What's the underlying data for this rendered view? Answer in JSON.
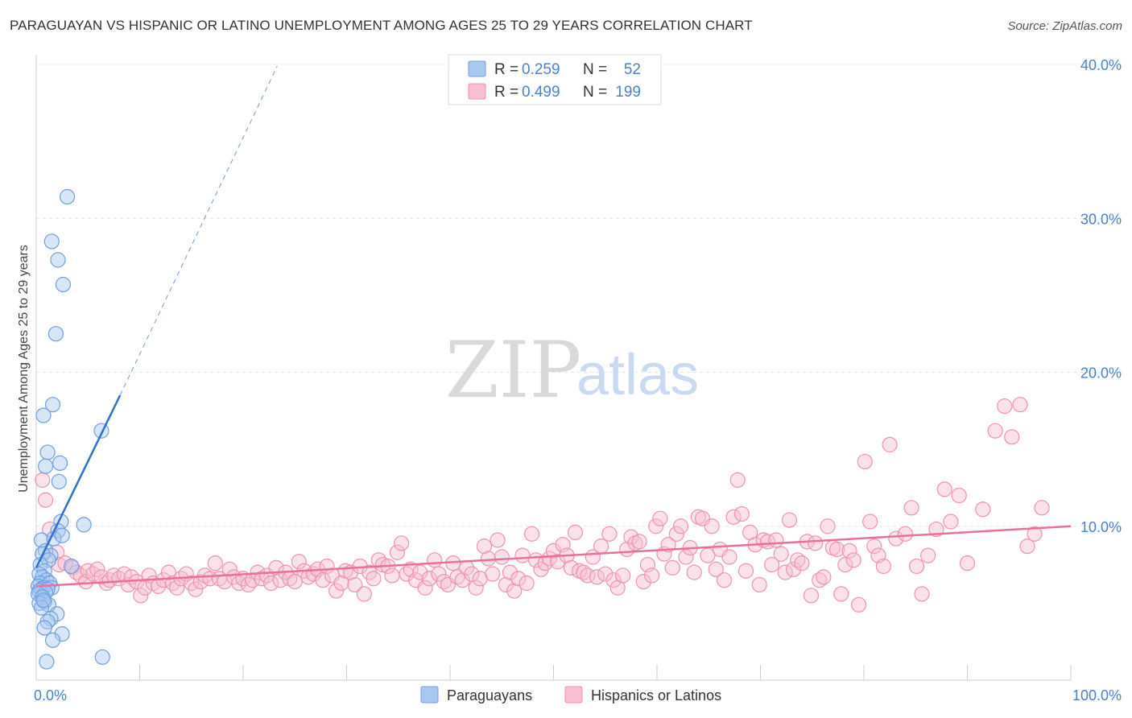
{
  "header": {
    "title": "PARAGUAYAN VS HISPANIC OR LATINO UNEMPLOYMENT AMONG AGES 25 TO 29 YEARS CORRELATION CHART",
    "source": "Source: ZipAtlas.com"
  },
  "watermark": {
    "zip": "ZIP",
    "atlas": "atlas"
  },
  "legend": {
    "r_label": "R =",
    "n_label": "N =",
    "entries": [
      {
        "r": "0.259",
        "n": "52",
        "color": "#a9c8f0",
        "stroke": "#6f9fe0"
      },
      {
        "r": "0.499",
        "n": "199",
        "color": "#f7bfd0",
        "stroke": "#ee92b0"
      }
    ]
  },
  "bottom_legend": [
    {
      "label": "Paraguayans",
      "color": "#a9c8f0",
      "stroke": "#6f9fe0"
    },
    {
      "label": "Hispanics or Latinos",
      "color": "#f7bfd0",
      "stroke": "#ee92b0"
    }
  ],
  "chart_data": {
    "type": "scatter",
    "title": "PARAGUAYAN VS HISPANIC OR LATINO UNEMPLOYMENT AMONG AGES 25 TO 29 YEARS CORRELATION CHART",
    "xlabel": "",
    "ylabel": "Unemployment Among Ages 25 to 29 years",
    "xlim": [
      0,
      100
    ],
    "ylim": [
      0,
      40
    ],
    "x_tick_labels": [
      "0.0%",
      "100.0%"
    ],
    "y_ticks": [
      10,
      20,
      30,
      40
    ],
    "y_tick_labels": [
      "10.0%",
      "20.0%",
      "30.0%",
      "40.0%"
    ],
    "grid": true,
    "legend_position": "top-center",
    "series": [
      {
        "name": "Paraguayans",
        "color": "#a9c8f0",
        "stroke": "#6f9fe0",
        "line_color": "#2f6fd0",
        "r": 0.259,
        "n": 52,
        "trend": {
          "x0": 0,
          "y0": 7.3,
          "x1": 8.1,
          "y1": 18.5,
          "dash_x1": 23.3,
          "dash_y1": 39.9
        },
        "points": [
          [
            3.0,
            31.4
          ],
          [
            1.5,
            28.5
          ],
          [
            2.1,
            27.3
          ],
          [
            2.6,
            25.7
          ],
          [
            1.9,
            22.5
          ],
          [
            1.6,
            17.9
          ],
          [
            0.7,
            17.2
          ],
          [
            6.3,
            16.2
          ],
          [
            1.1,
            14.8
          ],
          [
            0.9,
            13.9
          ],
          [
            2.3,
            14.1
          ],
          [
            2.2,
            12.9
          ],
          [
            2.4,
            10.3
          ],
          [
            4.6,
            10.1
          ],
          [
            2.1,
            9.7
          ],
          [
            0.5,
            9.1
          ],
          [
            1.7,
            9.2
          ],
          [
            2.5,
            9.4
          ],
          [
            0.9,
            8.4
          ],
          [
            1.4,
            8.1
          ],
          [
            0.6,
            8.2
          ],
          [
            1.2,
            7.8
          ],
          [
            0.4,
            7.5
          ],
          [
            3.4,
            7.4
          ],
          [
            0.8,
            7.1
          ],
          [
            0.3,
            6.9
          ],
          [
            0.6,
            6.7
          ],
          [
            1.0,
            6.5
          ],
          [
            0.4,
            6.3
          ],
          [
            1.3,
            6.3
          ],
          [
            0.2,
            6.1
          ],
          [
            0.7,
            6.0
          ],
          [
            1.5,
            6.0
          ],
          [
            0.5,
            5.9
          ],
          [
            1.1,
            5.9
          ],
          [
            0.3,
            5.8
          ],
          [
            0.9,
            5.7
          ],
          [
            0.2,
            5.6
          ],
          [
            0.6,
            5.4
          ],
          [
            0.8,
            5.1
          ],
          [
            0.3,
            5.0
          ],
          [
            1.2,
            4.9
          ],
          [
            0.5,
            4.7
          ],
          [
            2.0,
            4.3
          ],
          [
            1.4,
            4.0
          ],
          [
            1.1,
            3.8
          ],
          [
            0.8,
            3.4
          ],
          [
            2.5,
            3.0
          ],
          [
            1.6,
            2.6
          ],
          [
            6.4,
            1.5
          ],
          [
            1.0,
            1.2
          ],
          [
            0.7,
            5.2
          ]
        ]
      },
      {
        "name": "Hispanics or Latinos",
        "color": "#f7bfd0",
        "stroke": "#ee92b0",
        "line_color": "#e8709a",
        "r": 0.499,
        "n": 199,
        "trend": {
          "x0": 0,
          "y0": 6.1,
          "x1": 100,
          "y1": 10.0
        },
        "points": [
          [
            0.6,
            13.0
          ],
          [
            0.9,
            11.7
          ],
          [
            1.3,
            9.8
          ],
          [
            2.0,
            8.3
          ],
          [
            2.2,
            7.5
          ],
          [
            2.8,
            7.6
          ],
          [
            3.5,
            7.3
          ],
          [
            3.9,
            7.0
          ],
          [
            4.3,
            6.8
          ],
          [
            4.8,
            6.4
          ],
          [
            5.0,
            7.1
          ],
          [
            5.5,
            6.9
          ],
          [
            5.9,
            7.2
          ],
          [
            6.3,
            6.7
          ],
          [
            6.8,
            6.3
          ],
          [
            7.1,
            6.5
          ],
          [
            7.5,
            6.8
          ],
          [
            8.0,
            6.6
          ],
          [
            8.5,
            6.9
          ],
          [
            8.9,
            6.2
          ],
          [
            9.2,
            6.7
          ],
          [
            9.7,
            6.4
          ],
          [
            10.1,
            5.5
          ],
          [
            10.5,
            6.0
          ],
          [
            10.9,
            6.8
          ],
          [
            11.3,
            6.3
          ],
          [
            11.8,
            6.1
          ],
          [
            12.3,
            6.5
          ],
          [
            12.8,
            7.0
          ],
          [
            13.2,
            6.3
          ],
          [
            13.6,
            6.0
          ],
          [
            14.0,
            6.6
          ],
          [
            14.5,
            6.9
          ],
          [
            15.0,
            6.3
          ],
          [
            15.4,
            5.9
          ],
          [
            15.9,
            6.4
          ],
          [
            16.3,
            6.8
          ],
          [
            16.8,
            6.6
          ],
          [
            17.3,
            7.6
          ],
          [
            17.7,
            6.6
          ],
          [
            18.2,
            6.4
          ],
          [
            18.7,
            7.2
          ],
          [
            19.1,
            6.7
          ],
          [
            19.6,
            6.3
          ],
          [
            20.0,
            6.6
          ],
          [
            20.5,
            6.2
          ],
          [
            20.9,
            6.5
          ],
          [
            21.4,
            7.0
          ],
          [
            21.8,
            6.6
          ],
          [
            22.3,
            6.8
          ],
          [
            22.7,
            6.3
          ],
          [
            23.2,
            7.3
          ],
          [
            23.6,
            6.5
          ],
          [
            24.1,
            7.0
          ],
          [
            24.5,
            6.6
          ],
          [
            25.0,
            6.4
          ],
          [
            25.4,
            7.7
          ],
          [
            25.9,
            7.1
          ],
          [
            26.3,
            6.7
          ],
          [
            26.8,
            6.9
          ],
          [
            27.2,
            7.2
          ],
          [
            27.7,
            6.5
          ],
          [
            28.1,
            7.4
          ],
          [
            28.6,
            6.8
          ],
          [
            29.0,
            5.8
          ],
          [
            29.5,
            6.3
          ],
          [
            29.9,
            7.1
          ],
          [
            30.4,
            7.0
          ],
          [
            30.8,
            6.2
          ],
          [
            31.3,
            7.4
          ],
          [
            31.7,
            5.6
          ],
          [
            32.2,
            7.0
          ],
          [
            32.6,
            6.6
          ],
          [
            33.1,
            7.8
          ],
          [
            33.5,
            7.5
          ],
          [
            34.0,
            7.4
          ],
          [
            34.4,
            6.8
          ],
          [
            34.9,
            8.3
          ],
          [
            35.3,
            8.9
          ],
          [
            35.8,
            6.9
          ],
          [
            36.2,
            7.2
          ],
          [
            36.7,
            6.5
          ],
          [
            37.1,
            7.0
          ],
          [
            37.6,
            6.0
          ],
          [
            38.0,
            6.6
          ],
          [
            38.5,
            7.8
          ],
          [
            38.9,
            6.9
          ],
          [
            39.4,
            6.4
          ],
          [
            39.8,
            6.2
          ],
          [
            40.3,
            7.6
          ],
          [
            40.7,
            6.7
          ],
          [
            41.2,
            6.5
          ],
          [
            41.6,
            7.3
          ],
          [
            42.1,
            6.9
          ],
          [
            42.5,
            6.0
          ],
          [
            42.9,
            6.6
          ],
          [
            43.3,
            8.7
          ],
          [
            43.7,
            7.9
          ],
          [
            44.1,
            6.9
          ],
          [
            44.6,
            9.1
          ],
          [
            45.0,
            8.0
          ],
          [
            45.4,
            6.2
          ],
          [
            45.8,
            7.0
          ],
          [
            46.2,
            5.8
          ],
          [
            46.6,
            6.6
          ],
          [
            47.0,
            8.1
          ],
          [
            47.4,
            6.3
          ],
          [
            47.9,
            9.5
          ],
          [
            48.3,
            7.8
          ],
          [
            48.8,
            7.2
          ],
          [
            49.2,
            7.6
          ],
          [
            49.6,
            7.9
          ],
          [
            50.0,
            8.4
          ],
          [
            50.4,
            7.7
          ],
          [
            50.9,
            8.8
          ],
          [
            51.3,
            8.1
          ],
          [
            51.7,
            7.3
          ],
          [
            52.1,
            9.6
          ],
          [
            52.5,
            7.1
          ],
          [
            52.9,
            7.0
          ],
          [
            53.3,
            6.8
          ],
          [
            53.8,
            8.0
          ],
          [
            54.2,
            6.7
          ],
          [
            54.6,
            8.7
          ],
          [
            55.0,
            6.9
          ],
          [
            55.4,
            9.5
          ],
          [
            55.8,
            6.5
          ],
          [
            56.2,
            6.0
          ],
          [
            56.7,
            6.8
          ],
          [
            57.1,
            8.5
          ],
          [
            57.5,
            9.3
          ],
          [
            57.9,
            8.9
          ],
          [
            58.3,
            9.0
          ],
          [
            58.7,
            6.4
          ],
          [
            59.1,
            7.5
          ],
          [
            59.5,
            6.8
          ],
          [
            59.9,
            10.0
          ],
          [
            60.3,
            10.5
          ],
          [
            60.7,
            8.2
          ],
          [
            61.1,
            8.8
          ],
          [
            61.5,
            7.3
          ],
          [
            61.9,
            9.5
          ],
          [
            62.3,
            10.0
          ],
          [
            62.8,
            8.0
          ],
          [
            63.2,
            8.6
          ],
          [
            63.6,
            7.0
          ],
          [
            64.0,
            10.6
          ],
          [
            64.4,
            10.5
          ],
          [
            64.9,
            8.1
          ],
          [
            65.3,
            10.0
          ],
          [
            65.7,
            7.2
          ],
          [
            66.1,
            8.5
          ],
          [
            66.5,
            6.5
          ],
          [
            67.0,
            8.0
          ],
          [
            67.4,
            10.6
          ],
          [
            67.8,
            13.0
          ],
          [
            68.2,
            10.8
          ],
          [
            68.6,
            7.1
          ],
          [
            69.0,
            9.6
          ],
          [
            69.5,
            8.8
          ],
          [
            69.9,
            6.2
          ],
          [
            70.3,
            9.1
          ],
          [
            70.7,
            9.0
          ],
          [
            71.1,
            7.5
          ],
          [
            71.5,
            9.1
          ],
          [
            72.0,
            8.2
          ],
          [
            72.4,
            7.0
          ],
          [
            72.8,
            10.4
          ],
          [
            73.2,
            7.2
          ],
          [
            73.6,
            7.8
          ],
          [
            74.0,
            7.6
          ],
          [
            74.5,
            9.0
          ],
          [
            74.9,
            5.5
          ],
          [
            75.3,
            8.9
          ],
          [
            75.7,
            6.5
          ],
          [
            76.1,
            6.7
          ],
          [
            76.5,
            10.0
          ],
          [
            77.0,
            8.6
          ],
          [
            77.4,
            8.5
          ],
          [
            77.8,
            5.6
          ],
          [
            78.2,
            7.5
          ],
          [
            78.6,
            8.4
          ],
          [
            79.0,
            7.8
          ],
          [
            79.5,
            4.9
          ],
          [
            80.1,
            14.2
          ],
          [
            80.6,
            10.3
          ],
          [
            81.0,
            8.7
          ],
          [
            81.4,
            8.1
          ],
          [
            81.9,
            7.4
          ],
          [
            82.5,
            15.3
          ],
          [
            83.1,
            9.2
          ],
          [
            84.0,
            9.5
          ],
          [
            84.6,
            11.2
          ],
          [
            85.1,
            7.4
          ],
          [
            85.6,
            5.6
          ],
          [
            86.2,
            8.1
          ],
          [
            87.0,
            9.8
          ],
          [
            87.8,
            12.4
          ],
          [
            88.4,
            10.3
          ],
          [
            89.2,
            12.0
          ],
          [
            90.0,
            7.6
          ],
          [
            91.5,
            11.1
          ],
          [
            92.7,
            16.2
          ],
          [
            93.6,
            17.8
          ],
          [
            94.3,
            15.8
          ],
          [
            95.1,
            17.9
          ],
          [
            95.8,
            8.7
          ],
          [
            96.5,
            9.5
          ],
          [
            97.2,
            11.2
          ]
        ]
      }
    ]
  }
}
